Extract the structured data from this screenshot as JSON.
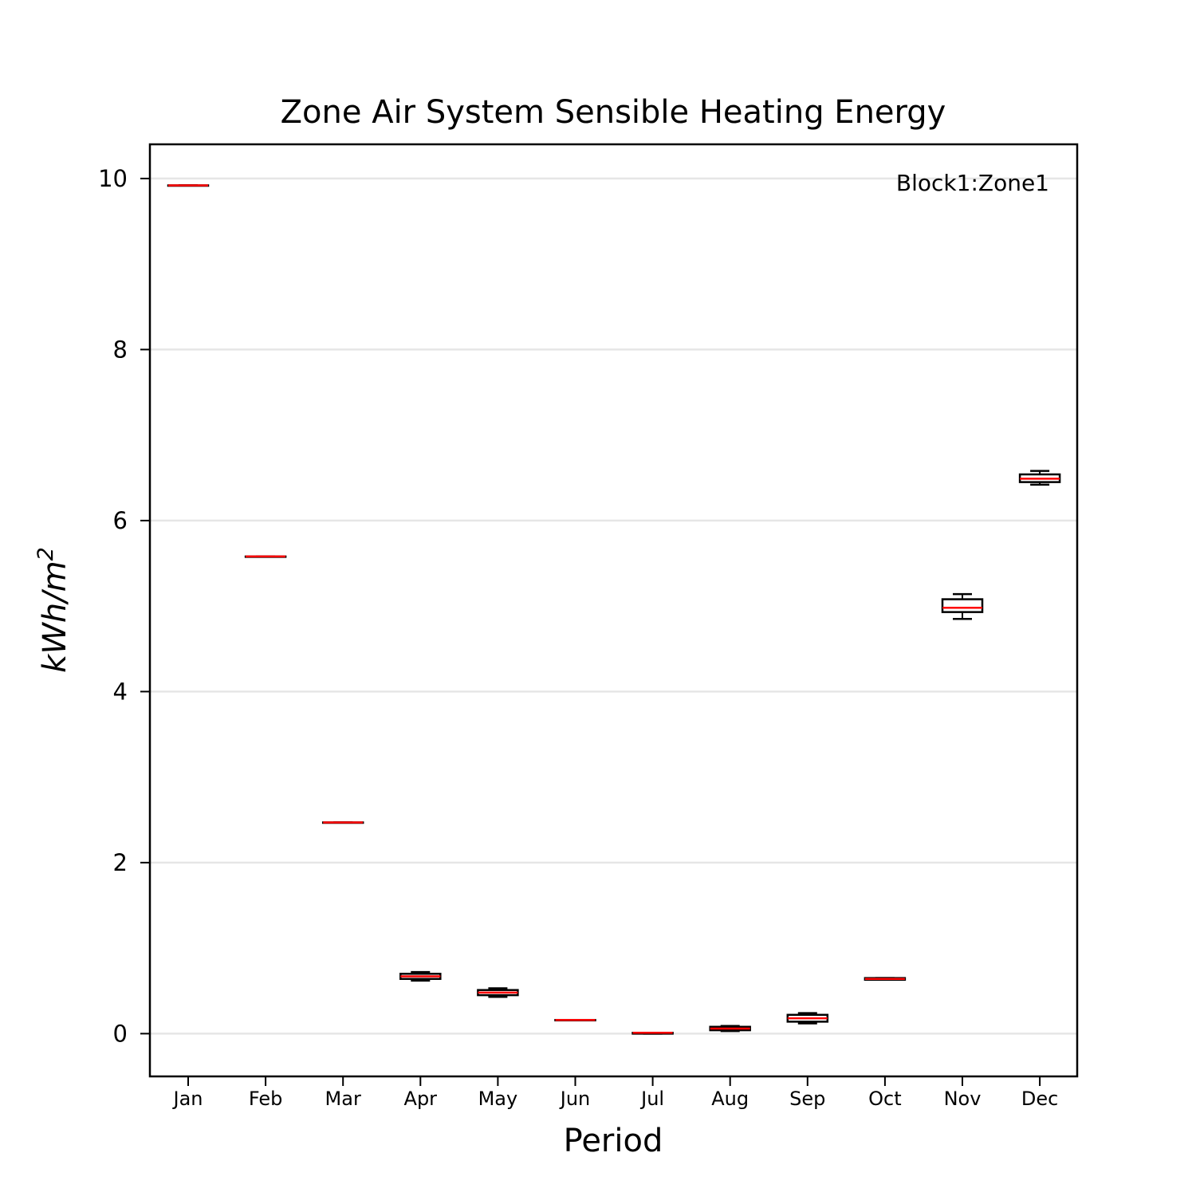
{
  "chart_data": {
    "type": "box",
    "title": "Zone Air System Sensible Heating Energy",
    "xlabel": "Period",
    "ylabel": {
      "base": "kWh/m",
      "superscript": "2"
    },
    "legend_text": "Block1:Zone1",
    "legend_position": "top-right",
    "categories": [
      "Jan",
      "Feb",
      "Mar",
      "Apr",
      "May",
      "Jun",
      "Jul",
      "Aug",
      "Sep",
      "Oct",
      "Nov",
      "Dec"
    ],
    "ylim": [
      -0.5,
      10.4
    ],
    "yticks": [
      0,
      2,
      4,
      6,
      8,
      10
    ],
    "grid": "horizontal",
    "colors": {
      "median": "#ff0000",
      "box": "#000000",
      "grid": "#e6e6e6"
    },
    "boxes": [
      {
        "min": 9.92,
        "q1": 9.92,
        "median": 9.92,
        "q3": 9.92,
        "max": 9.92
      },
      {
        "min": 5.58,
        "q1": 5.58,
        "median": 5.58,
        "q3": 5.58,
        "max": 5.58
      },
      {
        "min": 2.47,
        "q1": 2.47,
        "median": 2.47,
        "q3": 2.47,
        "max": 2.47
      },
      {
        "min": 0.62,
        "q1": 0.64,
        "median": 0.67,
        "q3": 0.7,
        "max": 0.72
      },
      {
        "min": 0.43,
        "q1": 0.45,
        "median": 0.48,
        "q3": 0.51,
        "max": 0.53
      },
      {
        "min": 0.16,
        "q1": 0.16,
        "median": 0.16,
        "q3": 0.16,
        "max": 0.16
      },
      {
        "min": 0.0,
        "q1": 0.0,
        "median": 0.01,
        "q3": 0.01,
        "max": 0.01
      },
      {
        "min": 0.03,
        "q1": 0.04,
        "median": 0.06,
        "q3": 0.08,
        "max": 0.09
      },
      {
        "min": 0.12,
        "q1": 0.14,
        "median": 0.18,
        "q3": 0.22,
        "max": 0.24
      },
      {
        "min": 0.63,
        "q1": 0.63,
        "median": 0.64,
        "q3": 0.65,
        "max": 0.65
      },
      {
        "min": 4.85,
        "q1": 4.93,
        "median": 4.98,
        "q3": 5.08,
        "max": 5.14
      },
      {
        "min": 6.42,
        "q1": 6.45,
        "median": 6.49,
        "q3": 6.54,
        "max": 6.58
      }
    ]
  }
}
